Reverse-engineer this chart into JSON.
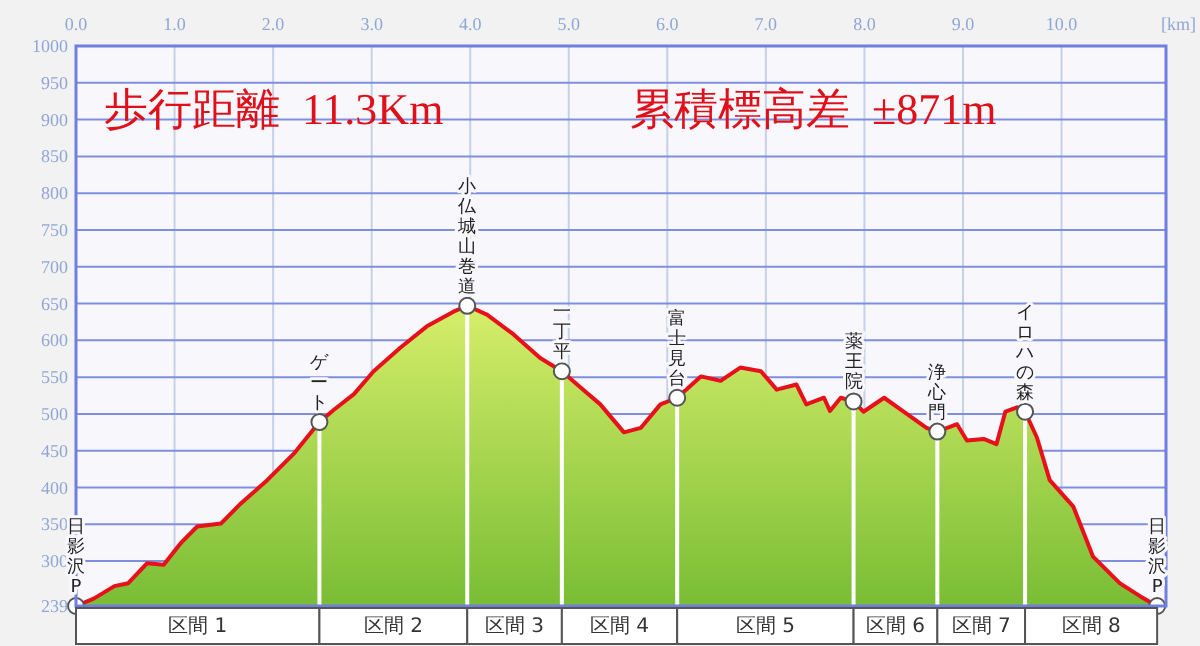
{
  "chart_data": {
    "type": "area",
    "xlabel": "[km]",
    "annotations": [
      "歩行距離  11.3Km",
      "累積標高差  ±871m",
      "区間 1",
      "区間 2",
      "区間 3",
      "区間 4",
      "区間 5",
      "区間 6",
      "区間 7",
      "区間 8",
      {
        "text": "日影沢P",
        "x": 0,
        "y": 239
      },
      {
        "text": "ゲート",
        "x": 2.47,
        "y": 489
      },
      {
        "text": "小仏城山巻道",
        "x": 3.97,
        "y": 647
      },
      {
        "text": "一丁平",
        "x": 4.93,
        "y": 558
      },
      {
        "text": "富士見台",
        "x": 6.1,
        "y": 522
      },
      {
        "text": "薬王院",
        "x": 7.89,
        "y": 517
      },
      {
        "text": "浄心門",
        "x": 8.74,
        "y": 476
      },
      {
        "text": "イロハの森",
        "x": 9.63,
        "y": 503
      },
      {
        "text": "日影沢P",
        "x": 10.97,
        "y": 239
      }
    ],
    "series": [
      {
        "color": "#e8101a",
        "x": [
          0,
          0.18,
          0.39,
          0.53,
          0.72,
          0.89,
          1.06,
          1.23,
          1.47,
          1.67,
          1.94,
          2.21,
          2.47,
          2.62,
          2.82,
          3.02,
          3.29,
          3.56,
          3.83,
          3.97,
          4.17,
          4.44,
          4.71,
          4.93,
          5.12,
          5.32,
          5.56,
          5.73,
          5.93,
          6.1,
          6.34,
          6.54,
          6.74,
          6.95,
          7.11,
          7.31,
          7.41,
          7.59,
          7.65,
          7.76,
          7.89,
          7.99,
          8.2,
          8.43,
          8.63,
          8.74,
          8.94,
          9.04,
          9.21,
          9.34,
          9.43,
          9.55,
          9.63,
          9.75,
          9.88,
          10.12,
          10.32,
          10.59,
          10.8,
          10.97
        ],
        "values": [
          239,
          249,
          266,
          270,
          297,
          295,
          324,
          347,
          351,
          378,
          410,
          446,
          489,
          506,
          527,
          558,
          590,
          619,
          639,
          647,
          635,
          608,
          576,
          558,
          536,
          513,
          475,
          481,
          513,
          522,
          551,
          545,
          563,
          558,
          533,
          540,
          513,
          522,
          504,
          522,
          517,
          503,
          522,
          500,
          481,
          476,
          486,
          464,
          466,
          459,
          503,
          509,
          503,
          468,
          410,
          374,
          306,
          270,
          252,
          239
        ]
      },
      {
        "type": "lollipop",
        "color": "#ffffff",
        "marker": "circle",
        "x": [
          0,
          2.47,
          3.97,
          4.93,
          6.1,
          7.89,
          8.74,
          9.63,
          10.97
        ],
        "values": [
          239,
          489,
          647,
          558,
          522,
          517,
          476,
          503,
          239
        ]
      }
    ],
    "xlim": [
      0,
      11.06
    ],
    "ylim": [
      239,
      1000
    ],
    "xticks": [
      {
        "value": 0,
        "label": "0.0"
      },
      {
        "value": 1,
        "label": "1.0"
      },
      {
        "value": 2,
        "label": "2.0"
      },
      {
        "value": 3,
        "label": "3.0"
      },
      {
        "value": 4,
        "label": "4.0"
      },
      {
        "value": 5,
        "label": "5.0"
      },
      {
        "value": 6,
        "label": "6.0"
      },
      {
        "value": 7,
        "label": "7.0"
      },
      {
        "value": 8,
        "label": "8.0"
      },
      {
        "value": 9,
        "label": "9.0"
      },
      {
        "value": 10,
        "label": "10.0"
      }
    ],
    "yticks": [
      239,
      300,
      350,
      400,
      450,
      500,
      550,
      600,
      650,
      700,
      750,
      800,
      850,
      900,
      950,
      1000
    ],
    "grid": true
  }
}
